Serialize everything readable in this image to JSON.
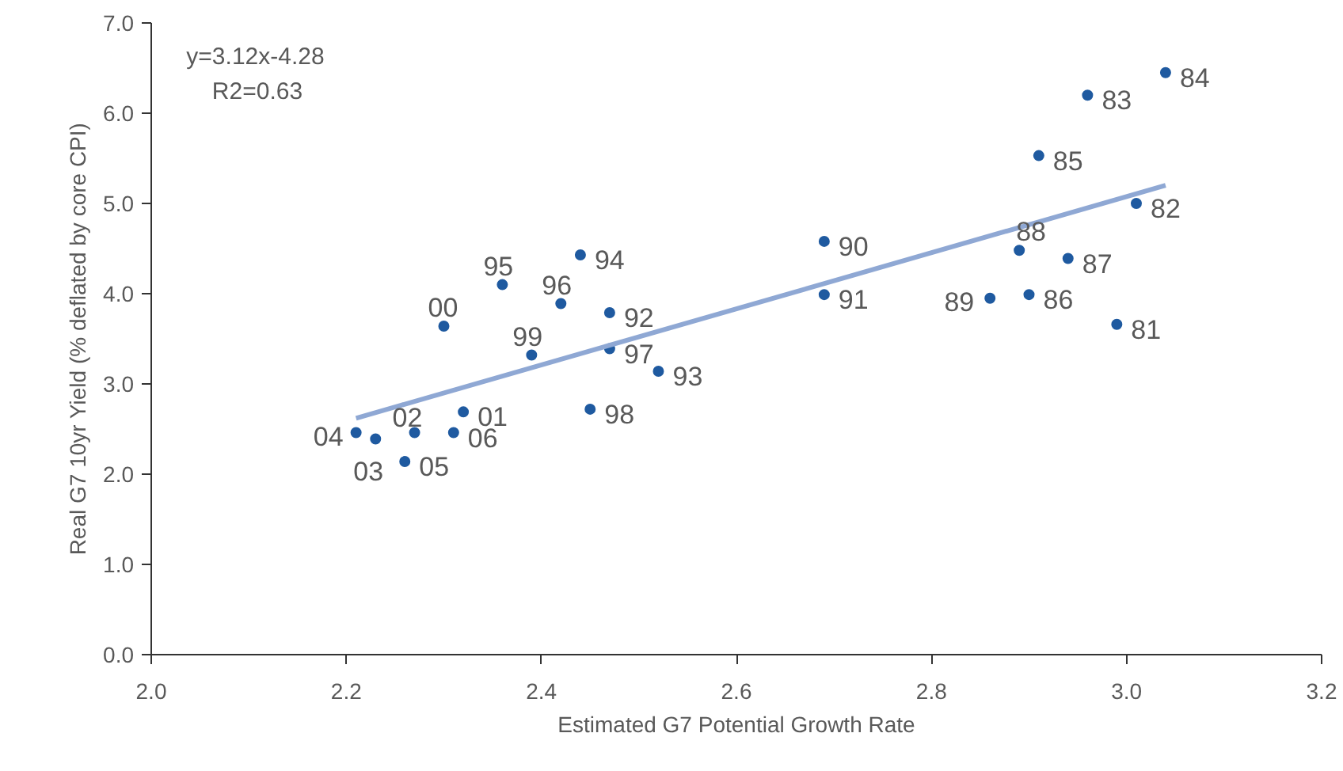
{
  "chart_data": {
    "type": "scatter",
    "xlabel": "Estimated G7 Potential Growth Rate",
    "ylabel": "Real G7 10yr Yield (% deflated by core CPI)",
    "xlim": [
      2.0,
      3.2
    ],
    "xticks": [
      {
        "value": 2.0,
        "label": "2.0"
      },
      {
        "value": 2.2,
        "label": "2.2"
      },
      {
        "value": 2.4,
        "label": "2.4"
      },
      {
        "value": 2.6,
        "label": "2.6"
      },
      {
        "value": 2.8,
        "label": "2.8"
      },
      {
        "value": 3.0,
        "label": "3.0"
      },
      {
        "value": 3.2,
        "label": "3.2"
      }
    ],
    "ylim": [
      0.0,
      7.0
    ],
    "yticks": [
      {
        "value": 0,
        "label": "0.0"
      },
      {
        "value": 1,
        "label": "1.0"
      },
      {
        "value": 2,
        "label": "2.0"
      },
      {
        "value": 3,
        "label": "3.0"
      },
      {
        "value": 4,
        "label": "4.0"
      },
      {
        "value": 5,
        "label": "5.0"
      },
      {
        "value": 6,
        "label": "6.0"
      },
      {
        "value": 7,
        "label": "7.0"
      }
    ],
    "grid": false,
    "annotations": [
      "y=3.12x-4.28",
      "R2=0.63",
      {
        "text": "81",
        "x": 2.99,
        "y": 3.66
      },
      {
        "text": "82",
        "x": 3.01,
        "y": 5.0
      },
      {
        "text": "83",
        "x": 2.96,
        "y": 6.2
      },
      {
        "text": "84",
        "x": 3.04,
        "y": 6.45
      },
      {
        "text": "85",
        "x": 2.91,
        "y": 5.53
      },
      {
        "text": "86",
        "x": 2.9,
        "y": 3.99
      },
      {
        "text": "87",
        "x": 2.94,
        "y": 4.39
      },
      {
        "text": "88",
        "x": 2.89,
        "y": 4.48
      },
      {
        "text": "89",
        "x": 2.86,
        "y": 3.95
      },
      {
        "text": "90",
        "x": 2.69,
        "y": 4.58
      },
      {
        "text": "91",
        "x": 2.69,
        "y": 3.99
      },
      {
        "text": "92",
        "x": 2.47,
        "y": 3.79
      },
      {
        "text": "93",
        "x": 2.52,
        "y": 3.14
      },
      {
        "text": "94",
        "x": 2.44,
        "y": 4.43
      },
      {
        "text": "95",
        "x": 2.36,
        "y": 4.1
      },
      {
        "text": "96",
        "x": 2.42,
        "y": 3.89
      },
      {
        "text": "97",
        "x": 2.47,
        "y": 3.39
      },
      {
        "text": "98",
        "x": 2.45,
        "y": 2.72
      },
      {
        "text": "99",
        "x": 2.39,
        "y": 3.32
      },
      {
        "text": "00",
        "x": 2.3,
        "y": 3.64
      },
      {
        "text": "01",
        "x": 2.32,
        "y": 2.69
      },
      {
        "text": "02",
        "x": 2.27,
        "y": 2.46
      },
      {
        "text": "03",
        "x": 2.23,
        "y": 2.39
      },
      {
        "text": "04",
        "x": 2.21,
        "y": 2.46
      },
      {
        "text": "05",
        "x": 2.26,
        "y": 2.14
      },
      {
        "text": "06",
        "x": 2.31,
        "y": 2.46
      }
    ],
    "series": [
      {
        "color": "#1f5aa0",
        "marker": "circle",
        "x": [
          2.99,
          3.01,
          2.96,
          3.04,
          2.91,
          2.9,
          2.94,
          2.89,
          2.86,
          2.69,
          2.69,
          2.47,
          2.52,
          2.44,
          2.36,
          2.42,
          2.47,
          2.45,
          2.39,
          2.3,
          2.32,
          2.27,
          2.23,
          2.21,
          2.26,
          2.31
        ],
        "values": [
          3.66,
          5.0,
          6.2,
          6.45,
          5.53,
          3.99,
          4.39,
          4.48,
          3.95,
          4.58,
          3.99,
          3.79,
          3.14,
          4.43,
          4.1,
          3.89,
          3.39,
          2.72,
          3.32,
          3.64,
          2.69,
          2.46,
          2.39,
          2.46,
          2.14,
          2.46
        ]
      },
      {
        "type": "line",
        "color": "#8fa8d4",
        "x": [
          2.21,
          3.04
        ],
        "values": [
          2.62,
          5.2
        ]
      }
    ]
  }
}
